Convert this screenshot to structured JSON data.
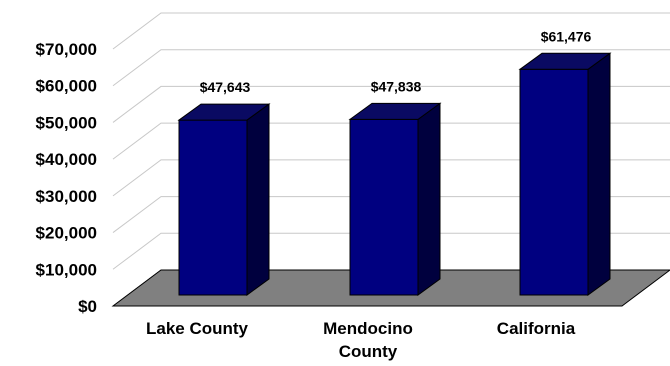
{
  "chart_data": {
    "type": "bar",
    "categories": [
      [
        "Lake County"
      ],
      [
        "Mendocino",
        "County"
      ],
      [
        "California"
      ]
    ],
    "values": [
      47643,
      47838,
      61476
    ],
    "data_labels": [
      "$47,643",
      "$47,838",
      "$61,476"
    ],
    "y_ticks": [
      "$0",
      "$10,000",
      "$20,000",
      "$30,000",
      "$40,000",
      "$50,000",
      "$60,000",
      "$70,000"
    ],
    "ylim": [
      0,
      70000
    ],
    "grid": true,
    "three_d": true,
    "title": "",
    "xlabel": "",
    "ylabel": "",
    "colors": {
      "bar_front": "#000080",
      "bar_side": "#00003e",
      "bar_top": "#0a0a62",
      "floor": "#808080",
      "grid": "#c8c8c8"
    }
  }
}
